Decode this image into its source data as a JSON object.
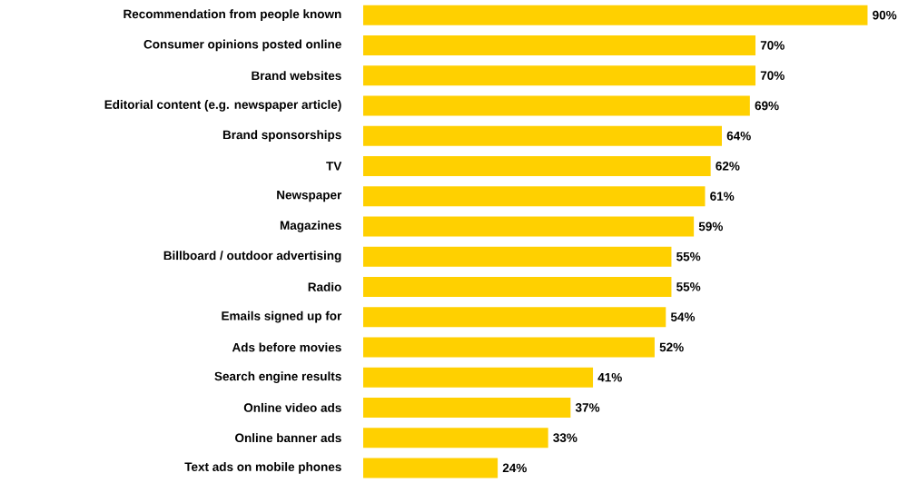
{
  "chart_data": {
    "type": "bar",
    "orientation": "horizontal",
    "color": "#ffd000",
    "categories": [
      "Recommendation from people known",
      "Consumer opinions posted online",
      "Brand websites",
      "Editorial content (e.g. newspaper article)",
      "Brand sponsorships",
      "TV",
      "Newspaper",
      "Magazines",
      "Billboard / outdoor advertising",
      "Radio",
      "Emails signed up for",
      "Ads before movies",
      "Search engine results",
      "Online video ads",
      "Online banner ads",
      "Text ads on mobile phones"
    ],
    "values": [
      90,
      70,
      70,
      69,
      64,
      62,
      61,
      59,
      55,
      55,
      54,
      52,
      41,
      37,
      33,
      24
    ],
    "value_labels": [
      "90%",
      "70%",
      "70%",
      "69%",
      "64%",
      "62%",
      "61%",
      "59%",
      "55%",
      "55%",
      "54%",
      "52%",
      "41%",
      "37%",
      "33%",
      "24%"
    ]
  }
}
